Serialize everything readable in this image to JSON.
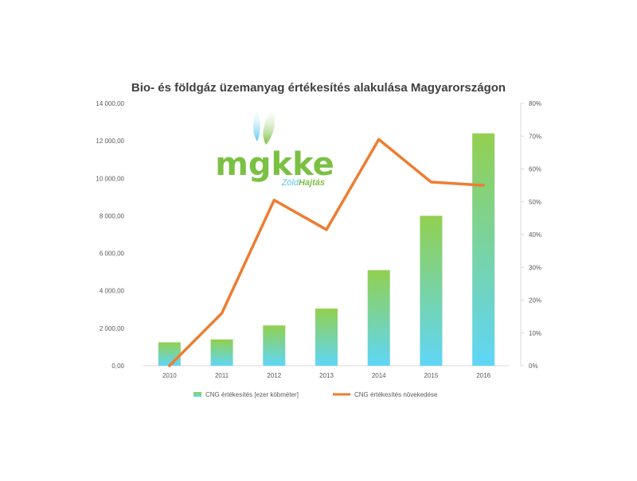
{
  "chart_data": {
    "type": "bar",
    "title": "Bio- és földgáz üzemanyag értékesítés alakulása Magyarországon",
    "categories": [
      "2010",
      "2011",
      "2012",
      "2013",
      "2014",
      "2015",
      "2016"
    ],
    "y_left": {
      "range": [
        0,
        14000
      ],
      "ticks": [
        "0,00",
        "2 000,00",
        "4 000,00",
        "6 000,00",
        "8 000,00",
        "10 000,00",
        "12 000,00",
        "14 000,00"
      ]
    },
    "y_right": {
      "range": [
        0,
        80
      ],
      "ticks": [
        "0%",
        "10%",
        "20%",
        "30%",
        "40%",
        "50%",
        "60%",
        "70%",
        "80%"
      ]
    },
    "series": [
      {
        "name": "CNG értékesítés [ezer köbméter]",
        "type": "bar",
        "axis": "left",
        "values": [
          1250,
          1400,
          2150,
          3050,
          5100,
          8000,
          12400
        ],
        "color_top": "#92d050",
        "color_bottom": "#5fd6f7"
      },
      {
        "name": "CNG értékesítés növekedése",
        "type": "line",
        "axis": "right",
        "values": [
          0,
          16,
          50.5,
          41.5,
          69,
          56,
          55
        ],
        "color": "#ed7d31"
      }
    ],
    "grid": false,
    "legend": "bottom"
  },
  "logo": {
    "text": "mgkke",
    "tagline_part1": "Zöld",
    "tagline_part2": "Hajtás",
    "color_green": "#7ac143",
    "color_blue": "#5bc8ef"
  }
}
